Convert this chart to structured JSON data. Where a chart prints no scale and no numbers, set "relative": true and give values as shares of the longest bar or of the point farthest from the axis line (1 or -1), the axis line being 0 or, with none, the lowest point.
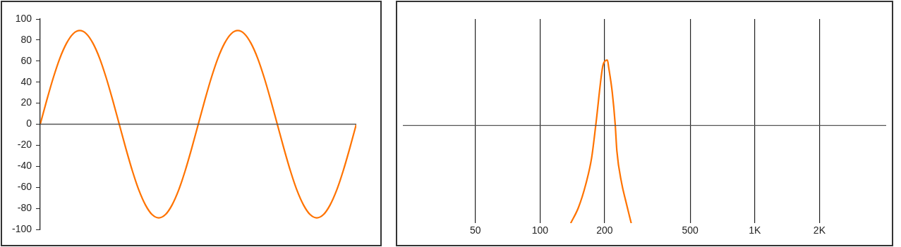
{
  "chart_data": [
    {
      "type": "line",
      "categories": [
        null,
        null,
        null,
        null,
        null,
        null,
        null,
        null,
        null,
        null,
        null,
        null,
        null,
        null,
        null,
        null,
        null,
        null,
        null,
        null,
        null,
        null,
        null,
        null,
        null,
        null,
        null,
        null,
        null,
        null,
        null,
        null,
        null,
        null,
        null,
        null,
        null,
        null,
        null,
        null,
        null,
        null,
        null,
        null,
        null,
        null,
        null,
        null,
        null
      ],
      "series": [
        {
          "color": "#ff7300",
          "values": [
            0,
            23,
            44.5,
            63,
            77,
            86,
            89,
            86,
            77,
            63,
            44.5,
            23,
            0,
            -23,
            -44.5,
            -63,
            -77,
            -86,
            -89,
            -86,
            -77,
            -63,
            -44.5,
            -23,
            0,
            23,
            44.5,
            63,
            77,
            86,
            89,
            86,
            77,
            63,
            44.5,
            23,
            0,
            -23,
            -44.5,
            -63,
            -77,
            -86,
            -89,
            -86,
            -77,
            -63,
            -44.5,
            -23,
            0
          ]
        }
      ],
      "ylim": [
        -100,
        100
      ],
      "yticks": [
        -100,
        -80,
        -60,
        -40,
        -20,
        0,
        20,
        40,
        60,
        80,
        100
      ],
      "tick_labels": "y",
      "legend": false,
      "marker": "none",
      "line_style": "solid",
      "ref_lines": [
        {
          "axis": "y",
          "value": 0,
          "color": "#555555"
        }
      ]
    },
    {
      "type": "line",
      "log": "x",
      "relative": true,
      "x": [
        139,
        151,
        163,
        174,
        182,
        195,
        198,
        206,
        209,
        217,
        224,
        228,
        240,
        250,
        266
      ],
      "series": [
        {
          "color": "#ff7300",
          "values": [
            -1,
            -0.84,
            -0.61,
            -0.33,
            0.01,
            0.58,
            0.64,
            0.67,
            0.59,
            0.34,
            0.01,
            -0.26,
            -0.59,
            -0.76,
            -1
          ]
        }
      ],
      "xlim": [
        23,
        4090
      ],
      "xticks": [
        50,
        100,
        200,
        500,
        {
          "value": 1000,
          "label": "1K"
        },
        {
          "value": 2000,
          "label": "2K"
        }
      ],
      "tick_labels": "x",
      "grid": "x",
      "legend": false,
      "marker": "none",
      "line_style": "solid"
    }
  ]
}
